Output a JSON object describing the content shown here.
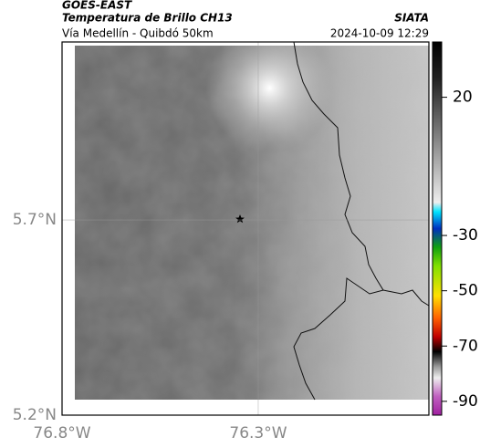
{
  "header": {
    "source": "GOES-EAST",
    "title": "Temperatura de Brillo CH13",
    "org": "SIATA",
    "route": "Vía Medellín - Quibdó 50km",
    "timestamp": "2024-10-09 12:29"
  },
  "map": {
    "xlim": [
      -76.8,
      -75.865
    ],
    "ylim": [
      5.2,
      6.156
    ],
    "xticks": [
      {
        "value": -76.8,
        "label": "76.8°W"
      },
      {
        "value": -76.3,
        "label": "76.3°W"
      }
    ],
    "yticks": [
      {
        "value": 5.2,
        "label": "5.2°N"
      },
      {
        "value": 5.7,
        "label": "5.7°N"
      }
    ],
    "grid": true
  },
  "colorbar": {
    "lim": [
      40,
      -95
    ],
    "ticks": [
      20,
      -30,
      -50,
      -70,
      -90
    ]
  }
}
